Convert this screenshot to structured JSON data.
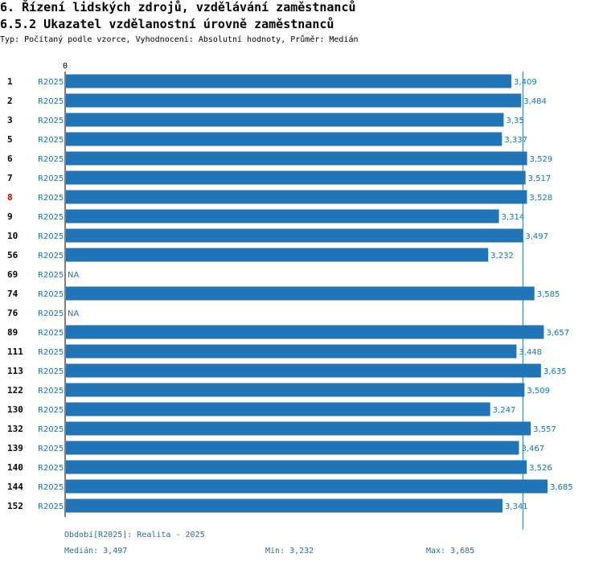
{
  "title": "6. Řízení lidských zdrojů, vzdělávání zaměstnanců",
  "subtitle": "6.5.2 Ukazatel vzdělanostní úrovně zaměstnanců",
  "description": "Typ: Počítaný podle vzorce, Vyhodnocení: Absolutní hodnoty, Průměr: Medián",
  "chart_data": {
    "type": "bar",
    "orientation": "horizontal",
    "axis_zero_label": "0",
    "xlim": [
      0,
      3.685
    ],
    "median_line": 3.497,
    "highlight_color": "#cc0000",
    "bar_color": "#2174b5",
    "label_color": "#1f6fa8",
    "rows": [
      {
        "id": "1",
        "period": "R2025",
        "value": 3.409,
        "label": "3,409"
      },
      {
        "id": "2",
        "period": "R2025",
        "value": 3.484,
        "label": "3,484"
      },
      {
        "id": "3",
        "period": "R2025",
        "value": 3.35,
        "label": "3,35"
      },
      {
        "id": "5",
        "period": "R2025",
        "value": 3.337,
        "label": "3,337"
      },
      {
        "id": "6",
        "period": "R2025",
        "value": 3.529,
        "label": "3,529"
      },
      {
        "id": "7",
        "period": "R2025",
        "value": 3.517,
        "label": "3,517"
      },
      {
        "id": "8",
        "period": "R2025",
        "value": 3.528,
        "label": "3,528",
        "highlight": true
      },
      {
        "id": "9",
        "period": "R2025",
        "value": 3.314,
        "label": "3,314"
      },
      {
        "id": "10",
        "period": "R2025",
        "value": 3.497,
        "label": "3,497"
      },
      {
        "id": "56",
        "period": "R2025",
        "value": 3.232,
        "label": "3,232"
      },
      {
        "id": "69",
        "period": "R2025",
        "value": null,
        "label": "NA"
      },
      {
        "id": "74",
        "period": "R2025",
        "value": 3.585,
        "label": "3,585"
      },
      {
        "id": "76",
        "period": "R2025",
        "value": null,
        "label": "NA"
      },
      {
        "id": "89",
        "period": "R2025",
        "value": 3.657,
        "label": "3,657"
      },
      {
        "id": "111",
        "period": "R2025",
        "value": 3.448,
        "label": "3,448"
      },
      {
        "id": "113",
        "period": "R2025",
        "value": 3.635,
        "label": "3,635"
      },
      {
        "id": "122",
        "period": "R2025",
        "value": 3.509,
        "label": "3,509"
      },
      {
        "id": "130",
        "period": "R2025",
        "value": 3.247,
        "label": "3,247"
      },
      {
        "id": "132",
        "period": "R2025",
        "value": 3.557,
        "label": "3,557"
      },
      {
        "id": "139",
        "period": "R2025",
        "value": 3.467,
        "label": "3,467"
      },
      {
        "id": "140",
        "period": "R2025",
        "value": 3.526,
        "label": "3,526"
      },
      {
        "id": "144",
        "period": "R2025",
        "value": 3.685,
        "label": "3,685"
      },
      {
        "id": "152",
        "period": "R2025",
        "value": 3.341,
        "label": "3,341"
      }
    ]
  },
  "footer": {
    "period_note": "Období[R2025]: Realita - 2025",
    "median": "Medián: 3,497",
    "min": "Min: 3,232",
    "max": "Max: 3,685"
  }
}
